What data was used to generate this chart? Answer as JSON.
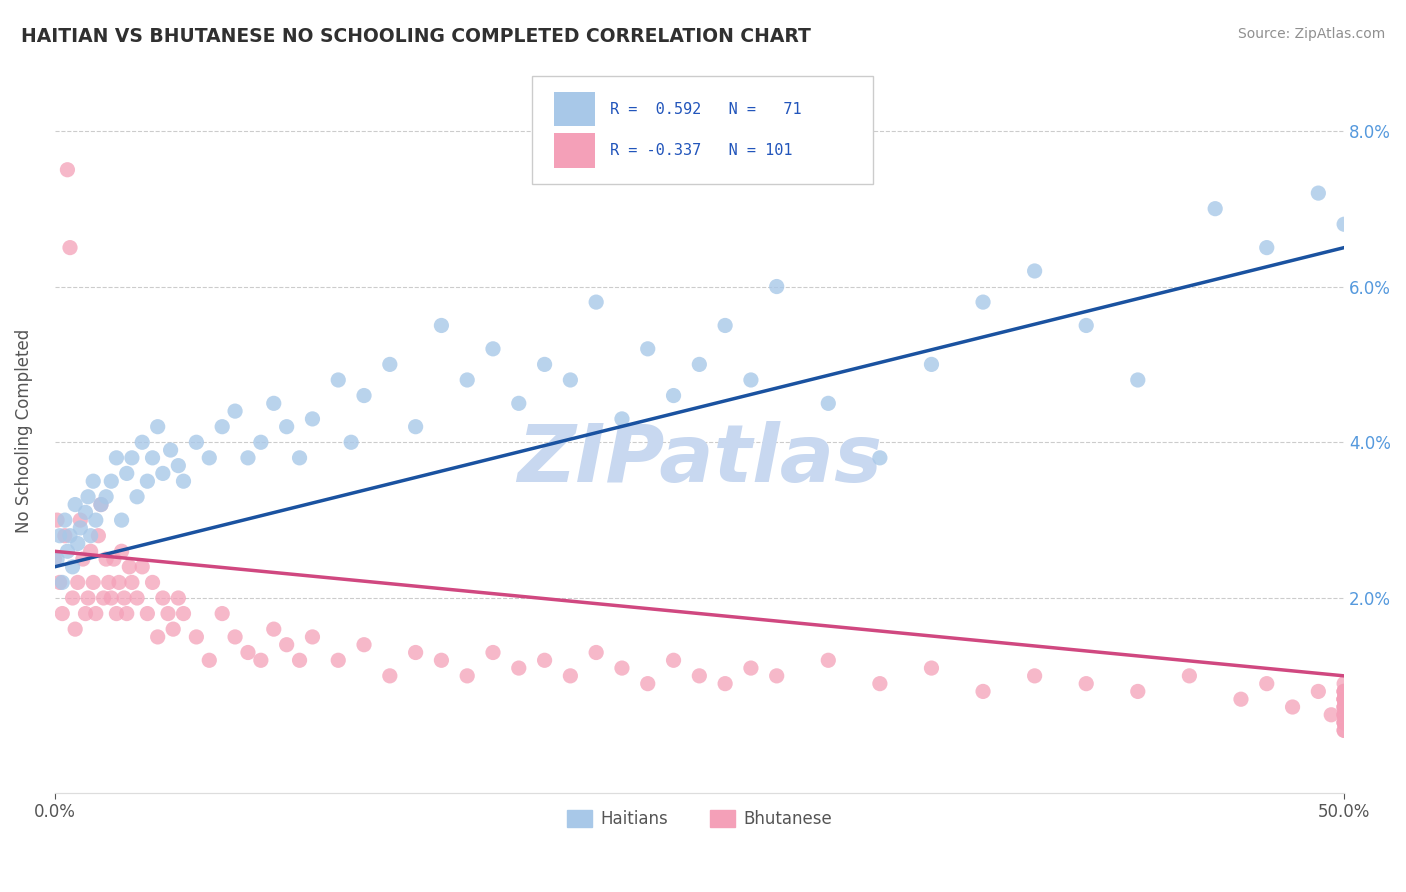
{
  "title": "HAITIAN VS BHUTANESE NO SCHOOLING COMPLETED CORRELATION CHART",
  "source": "Source: ZipAtlas.com",
  "ylabel": "No Schooling Completed",
  "xlim": [
    0.0,
    0.5
  ],
  "ylim": [
    -0.005,
    0.088
  ],
  "xticks": [
    0.0,
    0.5
  ],
  "xtick_labels": [
    "0.0%",
    "50.0%"
  ],
  "yticks_right": [
    0.0,
    0.02,
    0.04,
    0.06,
    0.08
  ],
  "yticks_right_labels": [
    "",
    "2.0%",
    "4.0%",
    "6.0%",
    "8.0%"
  ],
  "haitian_R": 0.592,
  "haitian_N": 71,
  "bhutanese_R": -0.337,
  "bhutanese_N": 101,
  "haitian_color": "#A8C8E8",
  "bhutanese_color": "#F4A0B8",
  "haitian_line_color": "#1A52A0",
  "bhutanese_line_color": "#D04880",
  "watermark": "ZIPatlas",
  "watermark_color": "#C8D8F0",
  "title_color": "#303030",
  "source_color": "#909090",
  "legend_label_haitian": "Haitians",
  "legend_label_bhutanese": "Bhutanese",
  "haitian_trend_x0": 0.0,
  "haitian_trend_x1": 0.5,
  "haitian_trend_y0": 0.024,
  "haitian_trend_y1": 0.065,
  "bhutanese_trend_x0": 0.0,
  "bhutanese_trend_x1": 0.5,
  "bhutanese_trend_y0": 0.026,
  "bhutanese_trend_y1": 0.01,
  "haitian_x": [
    0.001,
    0.002,
    0.003,
    0.004,
    0.005,
    0.006,
    0.007,
    0.008,
    0.009,
    0.01,
    0.012,
    0.013,
    0.014,
    0.015,
    0.016,
    0.018,
    0.02,
    0.022,
    0.024,
    0.026,
    0.028,
    0.03,
    0.032,
    0.034,
    0.036,
    0.038,
    0.04,
    0.042,
    0.045,
    0.048,
    0.05,
    0.055,
    0.06,
    0.065,
    0.07,
    0.075,
    0.08,
    0.085,
    0.09,
    0.095,
    0.1,
    0.11,
    0.115,
    0.12,
    0.13,
    0.14,
    0.15,
    0.16,
    0.17,
    0.18,
    0.19,
    0.2,
    0.21,
    0.22,
    0.23,
    0.24,
    0.25,
    0.26,
    0.27,
    0.28,
    0.3,
    0.32,
    0.34,
    0.36,
    0.38,
    0.4,
    0.42,
    0.45,
    0.47,
    0.49,
    0.5
  ],
  "haitian_y": [
    0.025,
    0.028,
    0.022,
    0.03,
    0.026,
    0.028,
    0.024,
    0.032,
    0.027,
    0.029,
    0.031,
    0.033,
    0.028,
    0.035,
    0.03,
    0.032,
    0.033,
    0.035,
    0.038,
    0.03,
    0.036,
    0.038,
    0.033,
    0.04,
    0.035,
    0.038,
    0.042,
    0.036,
    0.039,
    0.037,
    0.035,
    0.04,
    0.038,
    0.042,
    0.044,
    0.038,
    0.04,
    0.045,
    0.042,
    0.038,
    0.043,
    0.048,
    0.04,
    0.046,
    0.05,
    0.042,
    0.055,
    0.048,
    0.052,
    0.045,
    0.05,
    0.048,
    0.058,
    0.043,
    0.052,
    0.046,
    0.05,
    0.055,
    0.048,
    0.06,
    0.045,
    0.038,
    0.05,
    0.058,
    0.062,
    0.055,
    0.048,
    0.07,
    0.065,
    0.072,
    0.068
  ],
  "bhutanese_x": [
    0.0,
    0.001,
    0.002,
    0.003,
    0.004,
    0.005,
    0.006,
    0.007,
    0.008,
    0.009,
    0.01,
    0.011,
    0.012,
    0.013,
    0.014,
    0.015,
    0.016,
    0.017,
    0.018,
    0.019,
    0.02,
    0.021,
    0.022,
    0.023,
    0.024,
    0.025,
    0.026,
    0.027,
    0.028,
    0.029,
    0.03,
    0.032,
    0.034,
    0.036,
    0.038,
    0.04,
    0.042,
    0.044,
    0.046,
    0.048,
    0.05,
    0.055,
    0.06,
    0.065,
    0.07,
    0.075,
    0.08,
    0.085,
    0.09,
    0.095,
    0.1,
    0.11,
    0.12,
    0.13,
    0.14,
    0.15,
    0.16,
    0.17,
    0.18,
    0.19,
    0.2,
    0.21,
    0.22,
    0.23,
    0.24,
    0.25,
    0.26,
    0.27,
    0.28,
    0.3,
    0.32,
    0.34,
    0.36,
    0.38,
    0.4,
    0.42,
    0.44,
    0.46,
    0.47,
    0.48,
    0.49,
    0.495,
    0.5,
    0.5,
    0.5,
    0.5,
    0.5,
    0.5,
    0.5,
    0.5,
    0.5,
    0.5,
    0.5,
    0.5,
    0.5,
    0.5,
    0.5,
    0.5,
    0.5,
    0.5,
    0.5
  ],
  "bhutanese_y": [
    0.025,
    0.03,
    0.022,
    0.018,
    0.028,
    0.075,
    0.065,
    0.02,
    0.016,
    0.022,
    0.03,
    0.025,
    0.018,
    0.02,
    0.026,
    0.022,
    0.018,
    0.028,
    0.032,
    0.02,
    0.025,
    0.022,
    0.02,
    0.025,
    0.018,
    0.022,
    0.026,
    0.02,
    0.018,
    0.024,
    0.022,
    0.02,
    0.024,
    0.018,
    0.022,
    0.015,
    0.02,
    0.018,
    0.016,
    0.02,
    0.018,
    0.015,
    0.012,
    0.018,
    0.015,
    0.013,
    0.012,
    0.016,
    0.014,
    0.012,
    0.015,
    0.012,
    0.014,
    0.01,
    0.013,
    0.012,
    0.01,
    0.013,
    0.011,
    0.012,
    0.01,
    0.013,
    0.011,
    0.009,
    0.012,
    0.01,
    0.009,
    0.011,
    0.01,
    0.012,
    0.009,
    0.011,
    0.008,
    0.01,
    0.009,
    0.008,
    0.01,
    0.007,
    0.009,
    0.006,
    0.008,
    0.005,
    0.007,
    0.009,
    0.006,
    0.008,
    0.004,
    0.006,
    0.008,
    0.005,
    0.007,
    0.003,
    0.005,
    0.007,
    0.004,
    0.006,
    0.008,
    0.003,
    0.005,
    0.007,
    0.004
  ]
}
